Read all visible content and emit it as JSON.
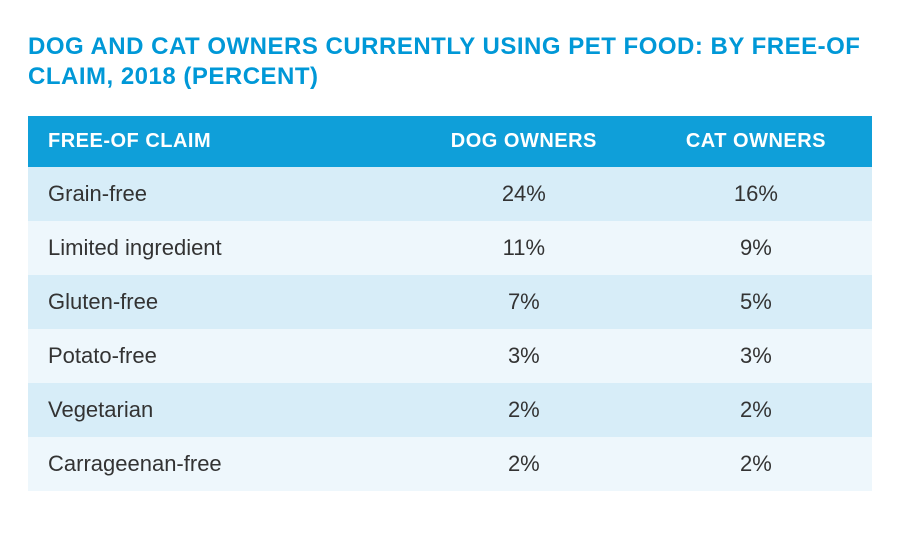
{
  "title": "DOG AND CAT OWNERS CURRENTLY USING PET FOOD: BY FREE-OF CLAIM, 2018 (PERCENT)",
  "table": {
    "columns": [
      "FREE-OF CLAIM",
      "DOG OWNERS",
      "CAT OWNERS"
    ],
    "rows": [
      [
        "Grain-free",
        "24%",
        "16%"
      ],
      [
        "Limited ingredient",
        "11%",
        "9%"
      ],
      [
        "Gluten-free",
        "7%",
        "5%"
      ],
      [
        "Potato-free",
        "3%",
        "3%"
      ],
      [
        "Vegetarian",
        "2%",
        "2%"
      ],
      [
        "Carrageenan-free",
        "2%",
        "2%"
      ]
    ],
    "header_bg": "#0f9fd9",
    "header_text_color": "#ffffff",
    "row_bg_odd": "#d7edf8",
    "row_bg_even": "#eef7fc",
    "title_color": "#0098d7",
    "body_text_color": "#333333",
    "title_fontsize": 24,
    "header_fontsize": 20,
    "cell_fontsize": 22
  }
}
